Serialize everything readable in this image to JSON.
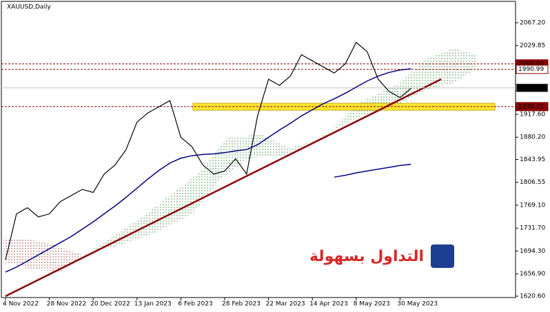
{
  "chart_data": {
    "type": "line",
    "title": "XAUUSD,Daily",
    "categories": [
      "4 Nov 2022",
      null,
      null,
      null,
      "28 Nov 2022",
      null,
      null,
      null,
      "20 Dec 2022",
      null,
      null,
      null,
      "13 Jan 2023",
      null,
      null,
      null,
      "6 Feb 2023",
      null,
      null,
      null,
      "28 Feb 2023",
      null,
      null,
      null,
      "22 Mar 2023",
      null,
      null,
      null,
      "14 Apr 2023",
      null,
      null,
      null,
      "8 May 2023",
      null,
      null,
      null,
      "30 May 2023",
      null
    ],
    "series": [
      {
        "color": "#000000",
        "values": [
          1680,
          1755,
          1765,
          1750,
          1755,
          1775,
          1785,
          1795,
          1790,
          1820,
          1835,
          1860,
          1905,
          1920,
          1930,
          1940,
          1880,
          1865,
          1835,
          1820,
          1825,
          1845,
          1820,
          1915,
          1975,
          1965,
          1980,
          2015,
          2005,
          1995,
          1985,
          2000,
          2035,
          2020,
          1975,
          1955,
          1945,
          1960
        ]
      },
      {
        "color": "#000080",
        "values": [
          1660,
          1668,
          1678,
          1688,
          1698,
          1708,
          1718,
          1730,
          1742,
          1755,
          1768,
          1782,
          1797,
          1812,
          1826,
          1838,
          1846,
          1850,
          1852,
          1853,
          1855,
          1858,
          1860,
          1868,
          1880,
          1892,
          1903,
          1915,
          1925,
          1935,
          1943,
          1952,
          1962,
          1972,
          1980,
          1986,
          1990,
          1992
        ]
      },
      {
        "color": "#000080",
        "values": [
          null,
          null,
          null,
          null,
          null,
          null,
          null,
          null,
          null,
          null,
          null,
          null,
          null,
          null,
          null,
          null,
          null,
          null,
          null,
          null,
          null,
          null,
          null,
          null,
          null,
          null,
          null,
          null,
          null,
          null,
          1815,
          1818,
          1822,
          1825,
          1828,
          1831,
          1834,
          1836
        ]
      }
    ],
    "levels": [
      {
        "value": 2000.0,
        "label": "2000.00",
        "color": "#8b0000"
      },
      {
        "value": 1990.99,
        "label": "1990.99",
        "color": "#8b0000"
      },
      {
        "value": 1960.8,
        "label": "1960.80",
        "color": "#c0c0c0"
      },
      {
        "value": 1930.21,
        "label": "1930.21",
        "color": "#8b0000"
      }
    ],
    "ylim": [
      1620.6,
      2067.2
    ],
    "yticks": [
      {
        "value": 1620.6,
        "label": "1620.60"
      },
      {
        "value": 1656.9,
        "label": "1656.90"
      },
      {
        "value": 1694.3,
        "label": "1694.30"
      },
      {
        "value": 1731.7,
        "label": "1731.70"
      },
      {
        "value": 1769.1,
        "label": "1769.10"
      },
      {
        "value": 1806.55,
        "label": "1806.55"
      },
      {
        "value": 1843.95,
        "label": "1843.95"
      },
      {
        "value": 1880.2,
        "label": "1880.20"
      },
      {
        "value": 1917.6,
        "label": "1917.60"
      },
      {
        "value": 2029.85,
        "label": "2029.85"
      },
      {
        "value": 2067.2,
        "label": "2067.20"
      }
    ],
    "logo": "التداول بسهولة"
  }
}
